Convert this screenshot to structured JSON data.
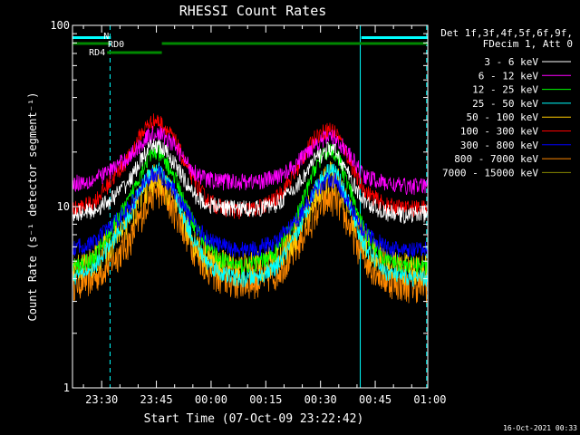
{
  "chart_data": {
    "type": "line",
    "title": "RHESSI Count Rates",
    "xlabel": "Start Time (07-Oct-09 23:22:42)",
    "ylabel": "Count Rate (s⁻¹ detector segment⁻¹)",
    "yscale": "log",
    "ylim": [
      1,
      100
    ],
    "xlim_minutes": [
      -0.7,
      96.7
    ],
    "x_ticks": [
      {
        "label": "23:30",
        "min": 7.3
      },
      {
        "label": "23:45",
        "min": 22.3
      },
      {
        "label": "00:00",
        "min": 37.3
      },
      {
        "label": "00:15",
        "min": 52.3
      },
      {
        "label": "00:30",
        "min": 67.3
      },
      {
        "label": "00:45",
        "min": 82.3
      },
      {
        "label": "01:00",
        "min": 97.3
      }
    ],
    "y_ticks": [
      {
        "label": "1",
        "value": 1
      },
      {
        "label": "10",
        "value": 10
      },
      {
        "label": "100",
        "value": 100
      }
    ],
    "legend_placement": "top-right",
    "legend_header": [
      "Det 1f,3f,4f,5f,6f,9f,",
      "FDecim 1, Att 0"
    ],
    "timestamp": "16-Oct-2021 00:33",
    "x_sample_minutes": [
      -0.7,
      5,
      10,
      15,
      18,
      20,
      22,
      23,
      25,
      28,
      30,
      33,
      36,
      40,
      45,
      50,
      55,
      60,
      63,
      66,
      70,
      72,
      75,
      78,
      80,
      85,
      90,
      96.7
    ],
    "series": [
      {
        "name": "3 - 6 keV",
        "color": "#ffffff",
        "values": [
          9.2,
          9.5,
          11,
          14,
          18,
          20.5,
          22,
          21.5,
          20,
          16.5,
          14,
          11.5,
          10.3,
          10,
          9.8,
          9.8,
          10.3,
          12.5,
          15,
          18.5,
          21,
          19.5,
          15,
          11.5,
          10.5,
          9.3,
          9,
          9.2
        ]
      },
      {
        "name": "6 - 12 keV",
        "color": "#ff00ff",
        "values": [
          13.5,
          14,
          16,
          19,
          22,
          24.5,
          25.5,
          25.5,
          24,
          21,
          18,
          15.5,
          14.2,
          13.8,
          13.8,
          13.8,
          14.5,
          16.5,
          19.5,
          22.5,
          24.5,
          23.5,
          19.5,
          16,
          14.5,
          13.5,
          13,
          13
        ]
      },
      {
        "name": "12 - 25 keV",
        "color": "#00ff00",
        "values": [
          4.6,
          5.2,
          7.5,
          11,
          15.5,
          18.5,
          20,
          19.5,
          17.5,
          13.5,
          10.5,
          7.8,
          6.2,
          5.1,
          4.7,
          4.9,
          5.6,
          8,
          11.5,
          17,
          21,
          19,
          13,
          8.5,
          7,
          5.2,
          4.8,
          4.7
        ]
      },
      {
        "name": "25 - 50 keV",
        "color": "#00ffff",
        "values": [
          4.1,
          4.6,
          6.3,
          9,
          12.5,
          15,
          16.5,
          16,
          14.2,
          11,
          8.5,
          6.3,
          5,
          4.3,
          4,
          4.1,
          4.6,
          6.5,
          9,
          13,
          16.5,
          15,
          10.5,
          7,
          5.8,
          4.4,
          4.1,
          4
        ]
      },
      {
        "name": "50 - 100 keV",
        "color": "#ffcc00",
        "values": [
          4.6,
          5,
          6.5,
          8.8,
          11.5,
          13.5,
          14.5,
          14.2,
          12.8,
          10.2,
          8.2,
          6.3,
          5.3,
          4.8,
          4.6,
          4.7,
          5.2,
          6.8,
          9,
          12,
          15,
          13.8,
          10,
          7.3,
          6.2,
          4.9,
          4.6,
          4.6
        ]
      },
      {
        "name": "100 - 300 keV",
        "color": "#ff0000",
        "values": [
          9.6,
          10.5,
          14,
          19,
          25,
          28.5,
          30,
          29.5,
          27,
          22,
          17.5,
          13.5,
          11,
          9.9,
          9.5,
          9.8,
          11,
          15,
          19.5,
          24.5,
          27,
          25,
          18.5,
          13.5,
          12,
          10.2,
          9.8,
          9.8
        ]
      },
      {
        "name": "300 - 800 keV",
        "color": "#0000ff",
        "values": [
          5.9,
          6.3,
          7.9,
          10,
          12.5,
          14.3,
          15.3,
          15.2,
          14,
          11.8,
          9.8,
          7.8,
          6.8,
          6.1,
          5.8,
          5.9,
          6.4,
          8,
          10,
          12.5,
          14.5,
          13.5,
          10.5,
          8,
          7.2,
          6,
          5.7,
          5.8
        ]
      },
      {
        "name": "800 - 7000 keV",
        "color": "#ff8800",
        "values": [
          3.8,
          4,
          5,
          6.5,
          8.8,
          11,
          12.3,
          12.2,
          11.2,
          9,
          7.4,
          5.7,
          4.7,
          4,
          3.8,
          3.9,
          4.3,
          5.6,
          7.2,
          9.3,
          11.3,
          10.6,
          8,
          5.8,
          5,
          4,
          3.7,
          3.7
        ]
      },
      {
        "name": "7000 - 15000 keV",
        "color": "#888800",
        "values": []
      }
    ],
    "flags": [
      {
        "label": "N",
        "color": "#00ffff",
        "intervals": [
          [
            -0.7,
            9.8
          ],
          [
            78.5,
            96.7
          ]
        ]
      },
      {
        "label": "RD0",
        "color": "#008800",
        "intervals": [
          [
            -0.7,
            9.5
          ],
          [
            23.8,
            96.7
          ]
        ]
      },
      {
        "label": "RD4",
        "color": "#008800",
        "intervals": [
          [
            8.8,
            23.8
          ]
        ]
      }
    ],
    "boundaries": {
      "solid": [
        -0.7,
        78.2
      ],
      "dashed": [
        9.6,
        96.4
      ]
    }
  }
}
